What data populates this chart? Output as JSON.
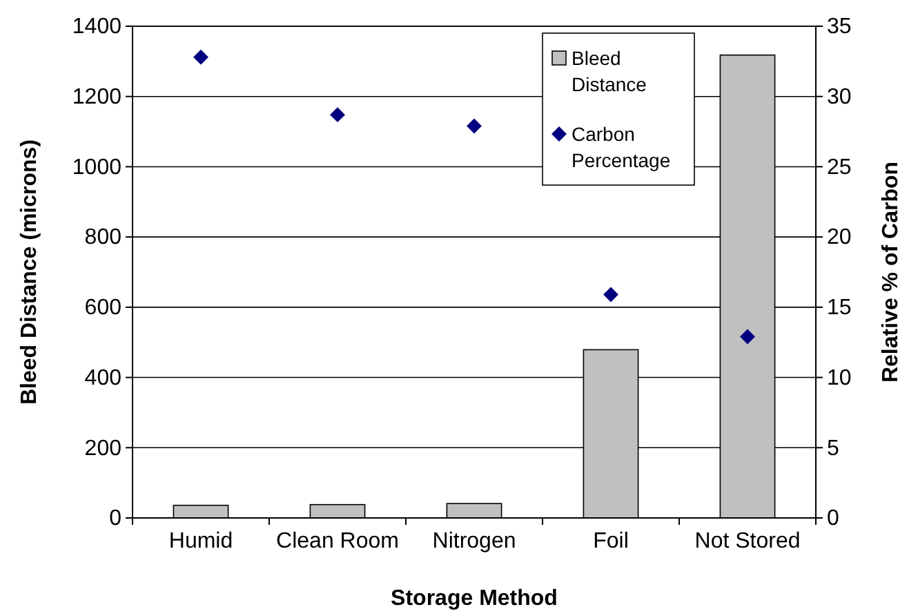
{
  "chart_data": {
    "type": "bar",
    "xlabel": "Storage Method",
    "ylabel": "Bleed Distance (microns)",
    "y2label": "Relative % of Carbon",
    "categories": [
      "Humid",
      "Clean Room",
      "Nitrogen",
      "Foil",
      "Not Stored"
    ],
    "series": [
      {
        "name": "Bleed Distance",
        "color": "#c0c0c0",
        "values": [
          36,
          38,
          41,
          479,
          1318
        ]
      },
      {
        "name": "Carbon Percentage",
        "type": "scatter",
        "axis": "y2",
        "marker": "diamond",
        "color": "#000080",
        "values": [
          32.8,
          28.7,
          27.9,
          15.9,
          12.9
        ]
      }
    ],
    "ylim": [
      0,
      1400
    ],
    "yticks": [
      0,
      200,
      400,
      600,
      800,
      1000,
      1200,
      1400
    ],
    "y2lim": [
      0,
      35
    ],
    "y2ticks": [
      0,
      5,
      10,
      15,
      20,
      25,
      30,
      35
    ],
    "grid": "y",
    "legend": "top right"
  }
}
